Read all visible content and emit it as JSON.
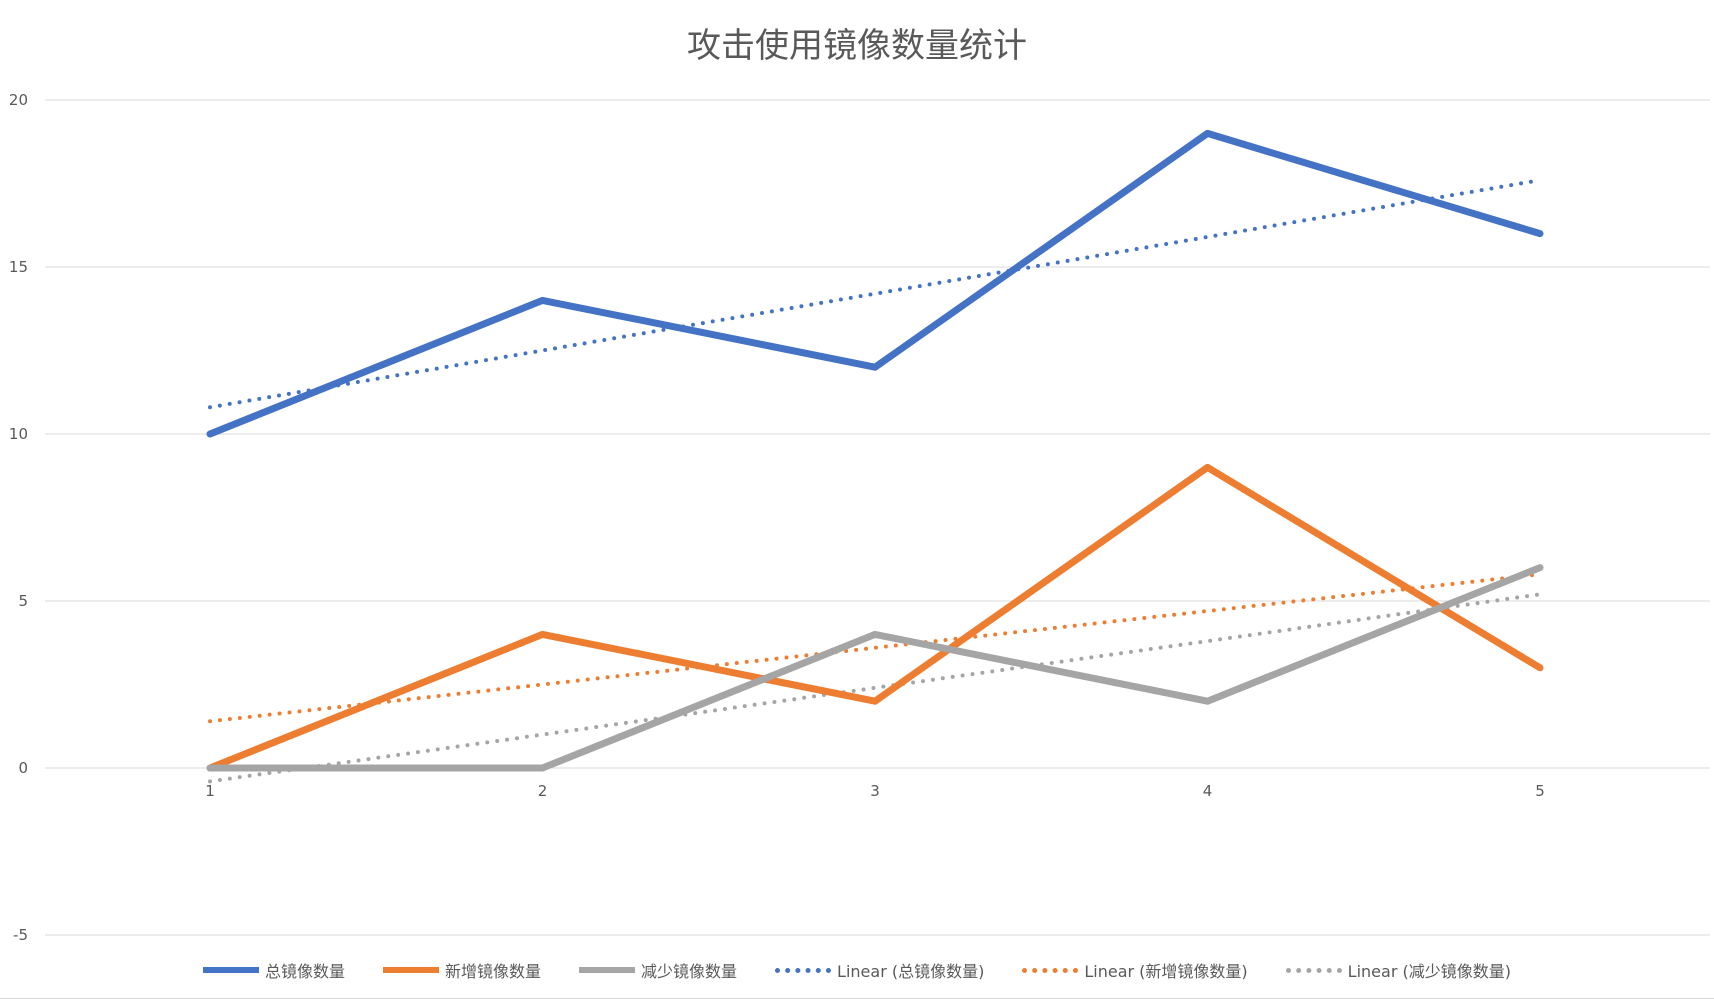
{
  "chart_data": {
    "type": "line",
    "title": "攻击使用镜像数量统计",
    "xlabel": "",
    "ylabel": "",
    "categories": [
      "1",
      "2",
      "3",
      "4",
      "5"
    ],
    "ylim": [
      -5,
      20
    ],
    "yticks": [
      "20",
      "15",
      "10",
      "5",
      "0",
      "-5"
    ],
    "grid": true,
    "legend_position": "bottom",
    "series": [
      {
        "name": "总镜像数量",
        "values": [
          10,
          14,
          12,
          19,
          16
        ],
        "color": "#4472C4",
        "style": "solid"
      },
      {
        "name": "新增镜像数量",
        "values": [
          0,
          4,
          2,
          9,
          3
        ],
        "color": "#ED7D31",
        "style": "solid"
      },
      {
        "name": "减少镜像数量",
        "values": [
          0,
          0,
          4,
          2,
          6
        ],
        "color": "#A5A5A5",
        "style": "solid"
      },
      {
        "name": "Linear (总镜像数量)",
        "values": [
          10.8,
          12.5,
          14.2,
          15.9,
          17.6
        ],
        "color": "#4472C4",
        "style": "dotted"
      },
      {
        "name": "Linear (新增镜像数量)",
        "values": [
          1.4,
          2.5,
          3.6,
          4.7,
          5.8
        ],
        "color": "#ED7D31",
        "style": "dotted"
      },
      {
        "name": "Linear (减少镜像数量)",
        "values": [
          -0.4,
          1.0,
          2.4,
          3.8,
          5.2
        ],
        "color": "#A5A5A5",
        "style": "dotted"
      }
    ]
  }
}
